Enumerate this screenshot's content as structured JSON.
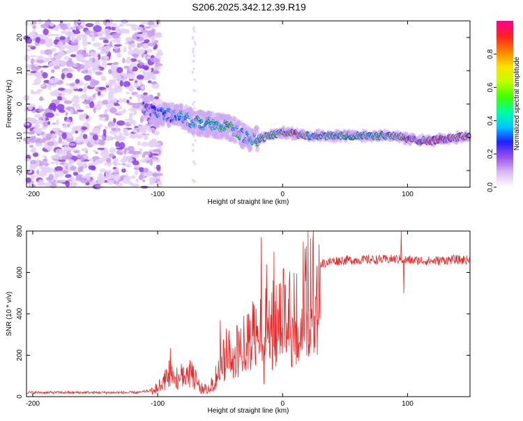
{
  "title": "S206.2025.342.12.39.R19",
  "chart_data": [
    {
      "type": "heatmap",
      "title": "S206.2025.342.12.39.R19",
      "xlabel": "Height of straight line (km)",
      "ylabel": "Frequency (Hz)",
      "xlim": [
        -205,
        150
      ],
      "ylim": [
        -25,
        25
      ],
      "x_ticks": [
        -200,
        -100,
        0,
        100
      ],
      "y_ticks": [
        -20,
        -10,
        0,
        10,
        20
      ],
      "colorbar": {
        "label": "Normalized spectral amplitude",
        "range": [
          0,
          1
        ],
        "ticks": [
          0.0,
          0.2,
          0.4,
          0.6,
          0.8
        ],
        "colors": [
          "#ffffff",
          "#d8b8f0",
          "#9a50e8",
          "#2020ff",
          "#00c8ff",
          "#00ffa0",
          "#40ff00",
          "#c0ff00",
          "#ffe000",
          "#ff8000",
          "#ff2020",
          "#ff0090"
        ]
      },
      "signal_track": {
        "x": [
          -112,
          -100,
          -90,
          -80,
          -70,
          -60,
          -50,
          -40,
          -30,
          -20,
          -10,
          0,
          10,
          20,
          40,
          60,
          80,
          90,
          100,
          110,
          120,
          130,
          140,
          150
        ],
        "freq_hz": [
          -1,
          -3,
          -3.5,
          -4,
          -5.5,
          -6,
          -6.5,
          -7.5,
          -10,
          -10.5,
          -9.5,
          -8.5,
          -9,
          -9.5,
          -9.5,
          -9.5,
          -9.5,
          -9.5,
          -10.5,
          -11,
          -11,
          -10.5,
          -10,
          -9.5
        ],
        "amplitude": [
          0.25,
          0.35,
          0.4,
          0.45,
          0.5,
          0.5,
          0.55,
          0.55,
          0.5,
          0.55,
          0.6,
          0.7,
          0.95,
          0.65,
          0.62,
          0.6,
          0.62,
          0.7,
          0.85,
          0.95,
          0.98,
          0.95,
          0.9,
          0.85
        ]
      },
      "noise_region_x": [
        -205,
        -112
      ]
    },
    {
      "type": "line",
      "xlabel": "Height of straight line (km)",
      "ylabel": "SNR (10 * v/v)",
      "xlim": [
        -205,
        150
      ],
      "ylim": [
        0,
        800
      ],
      "x_ticks": [
        -200,
        -100,
        0,
        100
      ],
      "y_ticks": [
        0,
        200,
        400,
        600,
        800
      ],
      "line_color": "#ee2222",
      "envelope": {
        "x": [
          -205,
          -150,
          -115,
          -105,
          -100,
          -95,
          -90,
          -85,
          -80,
          -75,
          -70,
          -65,
          -60,
          -55,
          -50,
          -45,
          -40,
          -35,
          -30,
          -25,
          -20,
          -15,
          -10,
          -5,
          0,
          5,
          10,
          15,
          20,
          25,
          30,
          40,
          50,
          60,
          70,
          80,
          90,
          100,
          110,
          120,
          130,
          140,
          150
        ],
        "snr": [
          20,
          20,
          20,
          30,
          50,
          90,
          130,
          110,
          120,
          140,
          100,
          45,
          40,
          80,
          170,
          230,
          230,
          280,
          260,
          310,
          350,
          360,
          380,
          400,
          430,
          460,
          490,
          530,
          570,
          600,
          640,
          655,
          660,
          660,
          662,
          662,
          665,
          660,
          658,
          655,
          660,
          662,
          660
        ]
      },
      "spikes": [
        {
          "x": -90,
          "snr": 235
        },
        {
          "x": -50,
          "snr": 370
        },
        {
          "x": -31,
          "snr": 390
        },
        {
          "x": -24,
          "snr": 460
        },
        {
          "x": -17,
          "snr": 770
        },
        {
          "x": -15,
          "snr": 60
        },
        {
          "x": -13,
          "snr": 640
        },
        {
          "x": -7,
          "snr": 700
        },
        {
          "x": 2,
          "snr": 540
        },
        {
          "x": 95,
          "snr": 800
        },
        {
          "x": 97,
          "snr": 500
        }
      ]
    }
  ]
}
